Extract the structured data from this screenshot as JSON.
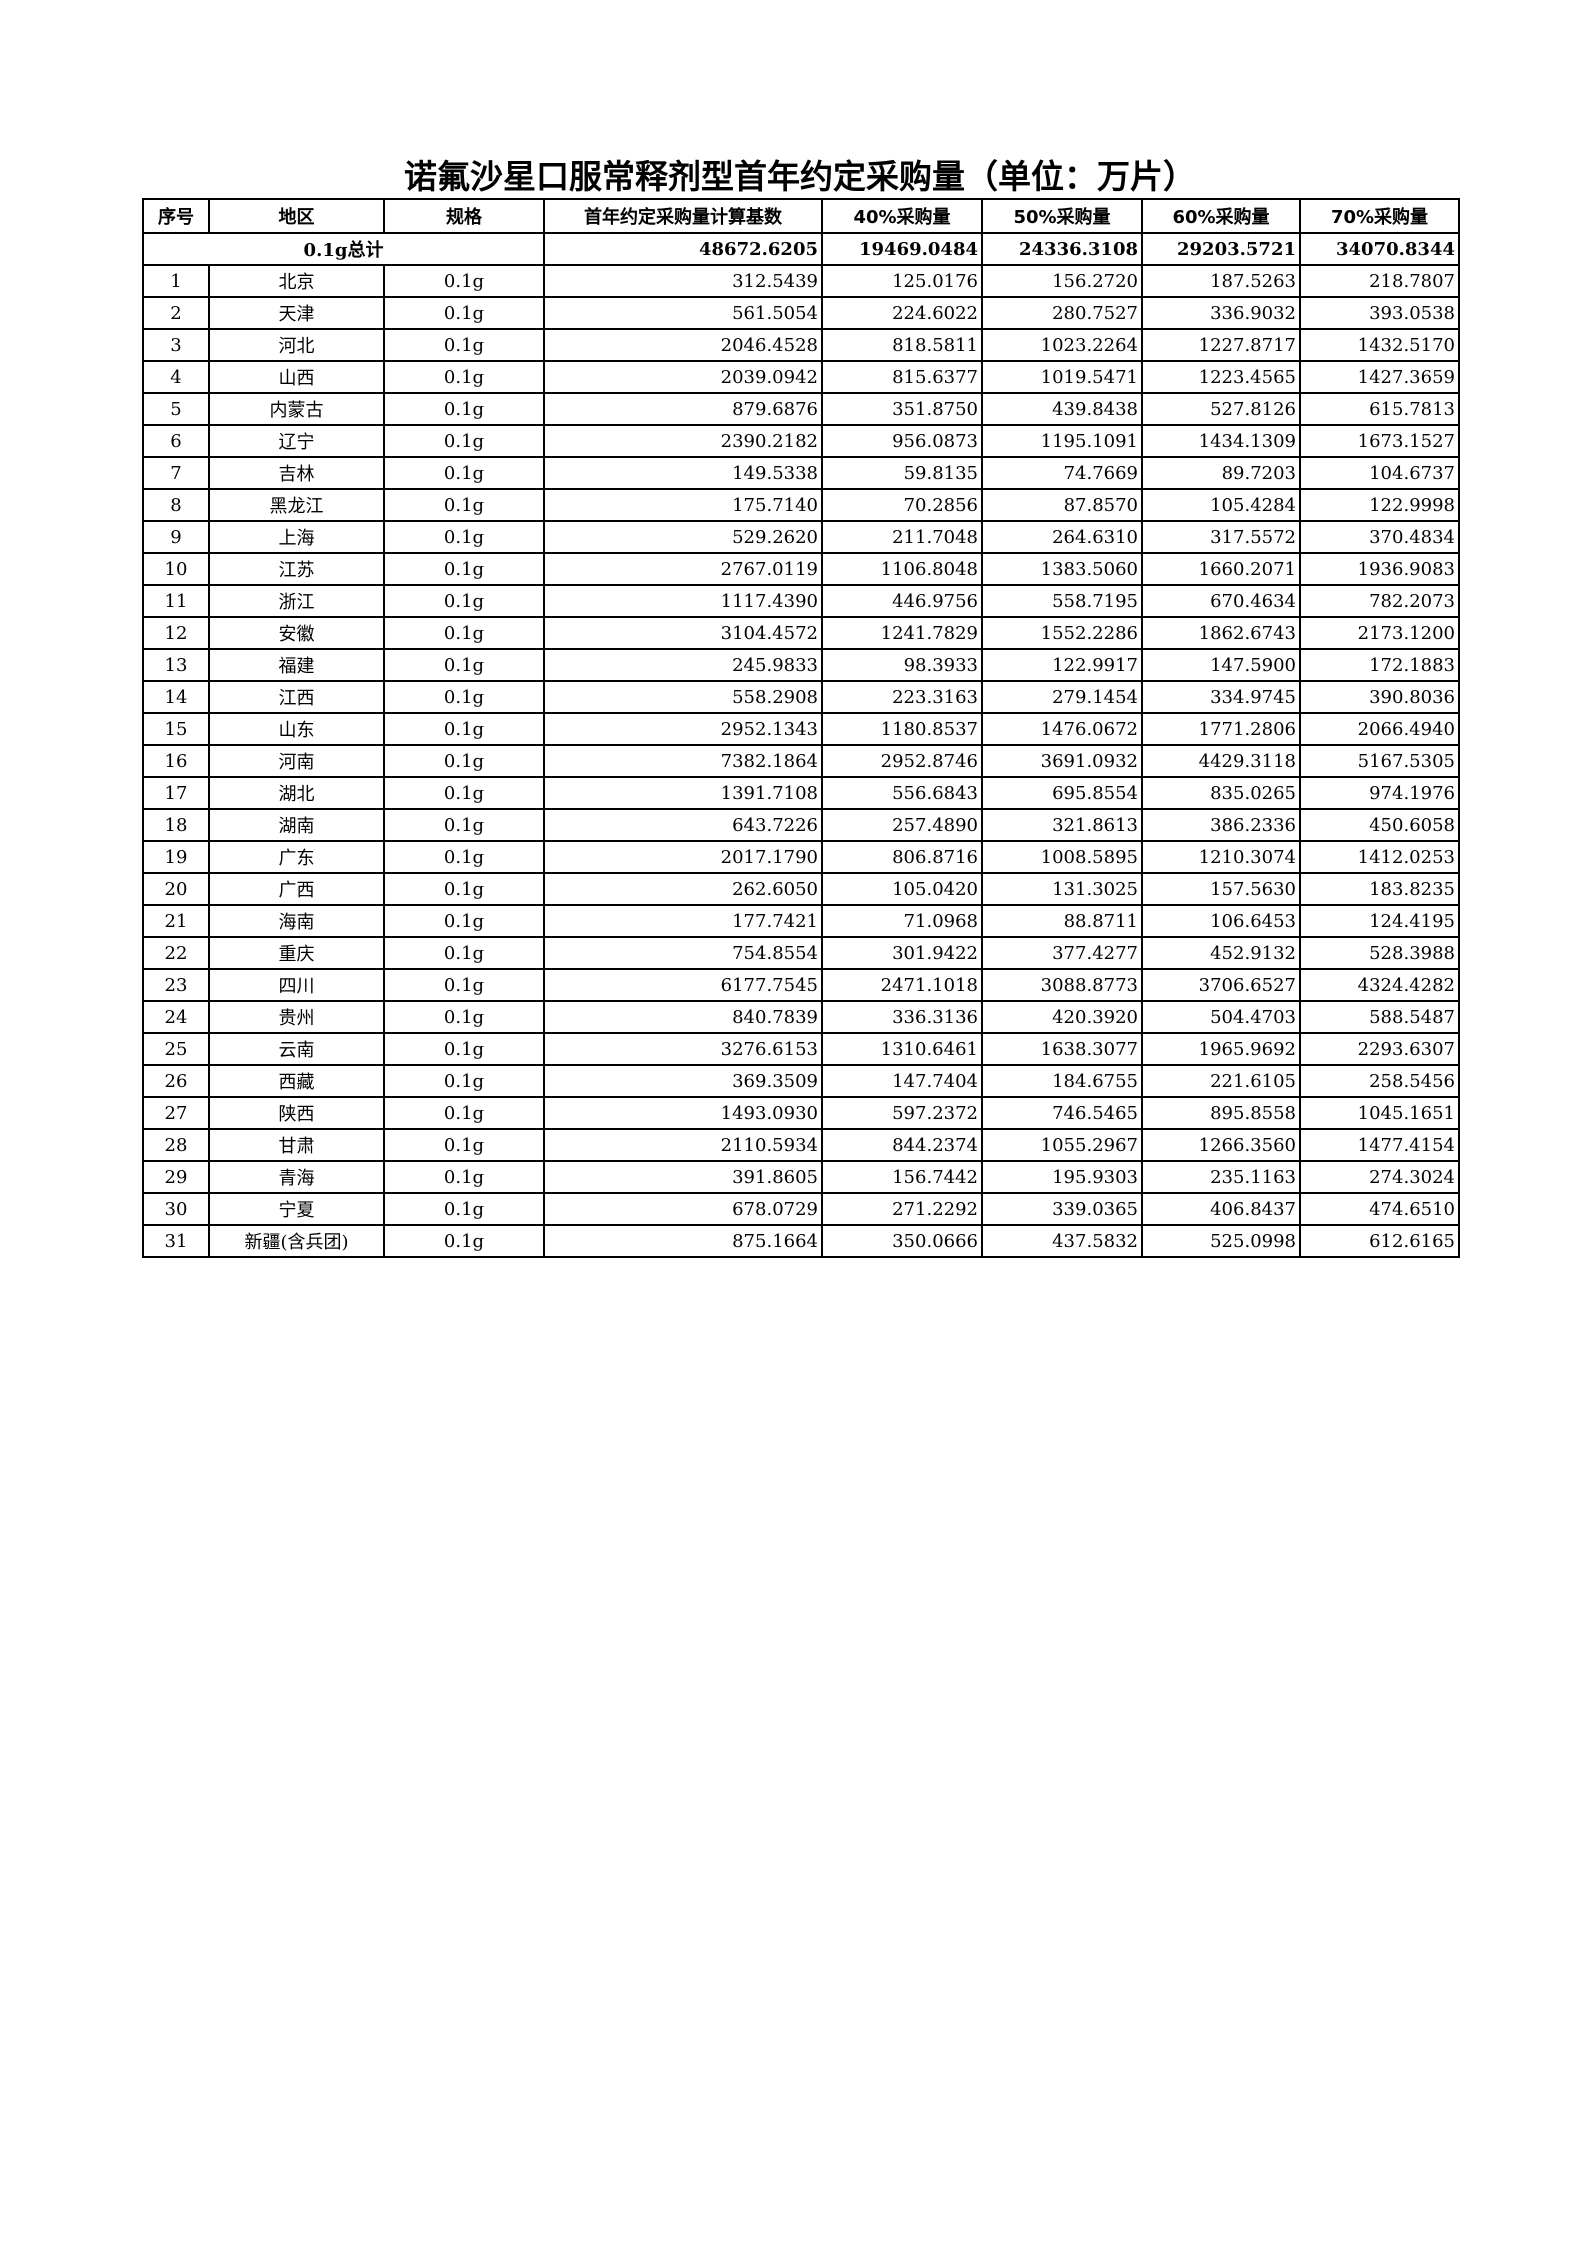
{
  "title": "诺氟沙星口服常释剂型首年约定采购量（单位：万片）",
  "headers": [
    "序号",
    "地区",
    "规格",
    "首年约定采购量计算基数",
    "40%采购量",
    "50%采购量",
    "60%采购量",
    "70%采购量"
  ],
  "total": {
    "label": "0.1g总计",
    "base": "48672.6205",
    "p40": "19469.0484",
    "p50": "24336.3108",
    "p60": "29203.5721",
    "p70": "34070.8344"
  },
  "rows": [
    [
      "1",
      "北京",
      "0.1g",
      "312.5439",
      "125.0176",
      "156.2720",
      "187.5263",
      "218.7807"
    ],
    [
      "2",
      "天津",
      "0.1g",
      "561.5054",
      "224.6022",
      "280.7527",
      "336.9032",
      "393.0538"
    ],
    [
      "3",
      "河北",
      "0.1g",
      "2046.4528",
      "818.5811",
      "1023.2264",
      "1227.8717",
      "1432.5170"
    ],
    [
      "4",
      "山西",
      "0.1g",
      "2039.0942",
      "815.6377",
      "1019.5471",
      "1223.4565",
      "1427.3659"
    ],
    [
      "5",
      "内蒙古",
      "0.1g",
      "879.6876",
      "351.8750",
      "439.8438",
      "527.8126",
      "615.7813"
    ],
    [
      "6",
      "辽宁",
      "0.1g",
      "2390.2182",
      "956.0873",
      "1195.1091",
      "1434.1309",
      "1673.1527"
    ],
    [
      "7",
      "吉林",
      "0.1g",
      "149.5338",
      "59.8135",
      "74.7669",
      "89.7203",
      "104.6737"
    ],
    [
      "8",
      "黑龙江",
      "0.1g",
      "175.7140",
      "70.2856",
      "87.8570",
      "105.4284",
      "122.9998"
    ],
    [
      "9",
      "上海",
      "0.1g",
      "529.2620",
      "211.7048",
      "264.6310",
      "317.5572",
      "370.4834"
    ],
    [
      "10",
      "江苏",
      "0.1g",
      "2767.0119",
      "1106.8048",
      "1383.5060",
      "1660.2071",
      "1936.9083"
    ],
    [
      "11",
      "浙江",
      "0.1g",
      "1117.4390",
      "446.9756",
      "558.7195",
      "670.4634",
      "782.2073"
    ],
    [
      "12",
      "安徽",
      "0.1g",
      "3104.4572",
      "1241.7829",
      "1552.2286",
      "1862.6743",
      "2173.1200"
    ],
    [
      "13",
      "福建",
      "0.1g",
      "245.9833",
      "98.3933",
      "122.9917",
      "147.5900",
      "172.1883"
    ],
    [
      "14",
      "江西",
      "0.1g",
      "558.2908",
      "223.3163",
      "279.1454",
      "334.9745",
      "390.8036"
    ],
    [
      "15",
      "山东",
      "0.1g",
      "2952.1343",
      "1180.8537",
      "1476.0672",
      "1771.2806",
      "2066.4940"
    ],
    [
      "16",
      "河南",
      "0.1g",
      "7382.1864",
      "2952.8746",
      "3691.0932",
      "4429.3118",
      "5167.5305"
    ],
    [
      "17",
      "湖北",
      "0.1g",
      "1391.7108",
      "556.6843",
      "695.8554",
      "835.0265",
      "974.1976"
    ],
    [
      "18",
      "湖南",
      "0.1g",
      "643.7226",
      "257.4890",
      "321.8613",
      "386.2336",
      "450.6058"
    ],
    [
      "19",
      "广东",
      "0.1g",
      "2017.1790",
      "806.8716",
      "1008.5895",
      "1210.3074",
      "1412.0253"
    ],
    [
      "20",
      "广西",
      "0.1g",
      "262.6050",
      "105.0420",
      "131.3025",
      "157.5630",
      "183.8235"
    ],
    [
      "21",
      "海南",
      "0.1g",
      "177.7421",
      "71.0968",
      "88.8711",
      "106.6453",
      "124.4195"
    ],
    [
      "22",
      "重庆",
      "0.1g",
      "754.8554",
      "301.9422",
      "377.4277",
      "452.9132",
      "528.3988"
    ],
    [
      "23",
      "四川",
      "0.1g",
      "6177.7545",
      "2471.1018",
      "3088.8773",
      "3706.6527",
      "4324.4282"
    ],
    [
      "24",
      "贵州",
      "0.1g",
      "840.7839",
      "336.3136",
      "420.3920",
      "504.4703",
      "588.5487"
    ],
    [
      "25",
      "云南",
      "0.1g",
      "3276.6153",
      "1310.6461",
      "1638.3077",
      "1965.9692",
      "2293.6307"
    ],
    [
      "26",
      "西藏",
      "0.1g",
      "369.3509",
      "147.7404",
      "184.6755",
      "221.6105",
      "258.5456"
    ],
    [
      "27",
      "陕西",
      "0.1g",
      "1493.0930",
      "597.2372",
      "746.5465",
      "895.8558",
      "1045.1651"
    ],
    [
      "28",
      "甘肃",
      "0.1g",
      "2110.5934",
      "844.2374",
      "1055.2967",
      "1266.3560",
      "1477.4154"
    ],
    [
      "29",
      "青海",
      "0.1g",
      "391.8605",
      "156.7442",
      "195.9303",
      "235.1163",
      "274.3024"
    ],
    [
      "30",
      "宁夏",
      "0.1g",
      "678.0729",
      "271.2292",
      "339.0365",
      "406.8437",
      "474.6510"
    ],
    [
      "31",
      "新疆(含兵团)",
      "0.1g",
      "875.1664",
      "350.0666",
      "437.5832",
      "525.0998",
      "612.6165"
    ]
  ]
}
